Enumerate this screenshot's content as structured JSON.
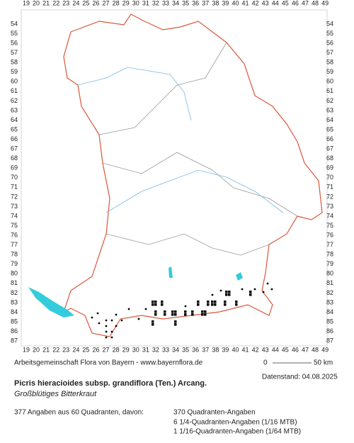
{
  "map": {
    "x_labels": [
      19,
      20,
      21,
      22,
      23,
      24,
      25,
      26,
      27,
      28,
      29,
      30,
      31,
      32,
      33,
      34,
      35,
      36,
      37,
      38,
      39,
      40,
      41,
      42,
      43,
      44,
      45,
      46,
      47,
      48,
      49
    ],
    "y_labels": [
      54,
      55,
      56,
      57,
      58,
      59,
      60,
      61,
      62,
      63,
      64,
      65,
      66,
      67,
      68,
      69,
      70,
      71,
      72,
      73,
      74,
      75,
      76,
      77,
      78,
      79,
      80,
      81,
      82,
      83,
      84,
      85,
      86,
      87
    ],
    "credit": "Arbeitsgemeinschaft Flora von Bayern - www.bayernflora.de",
    "scale": {
      "start": "0",
      "end": "50 km"
    },
    "date": "Datenstand: 04.08.2025",
    "title": "Picris hieracioides subsp. grandiflora (Ten.) Arcang.",
    "subtitle": "Großblütiges Bitterkraut",
    "stats": {
      "total": "377 Angaben aus 60 Quadranten, davon:",
      "lines": [
        "370 Quadranten-Angaben",
        "6 1/4-Quadranten-Angaben (1/16 MTB)",
        "1 1/16-Quadranten-Angaben (1/64 MTB)"
      ]
    }
  }
}
